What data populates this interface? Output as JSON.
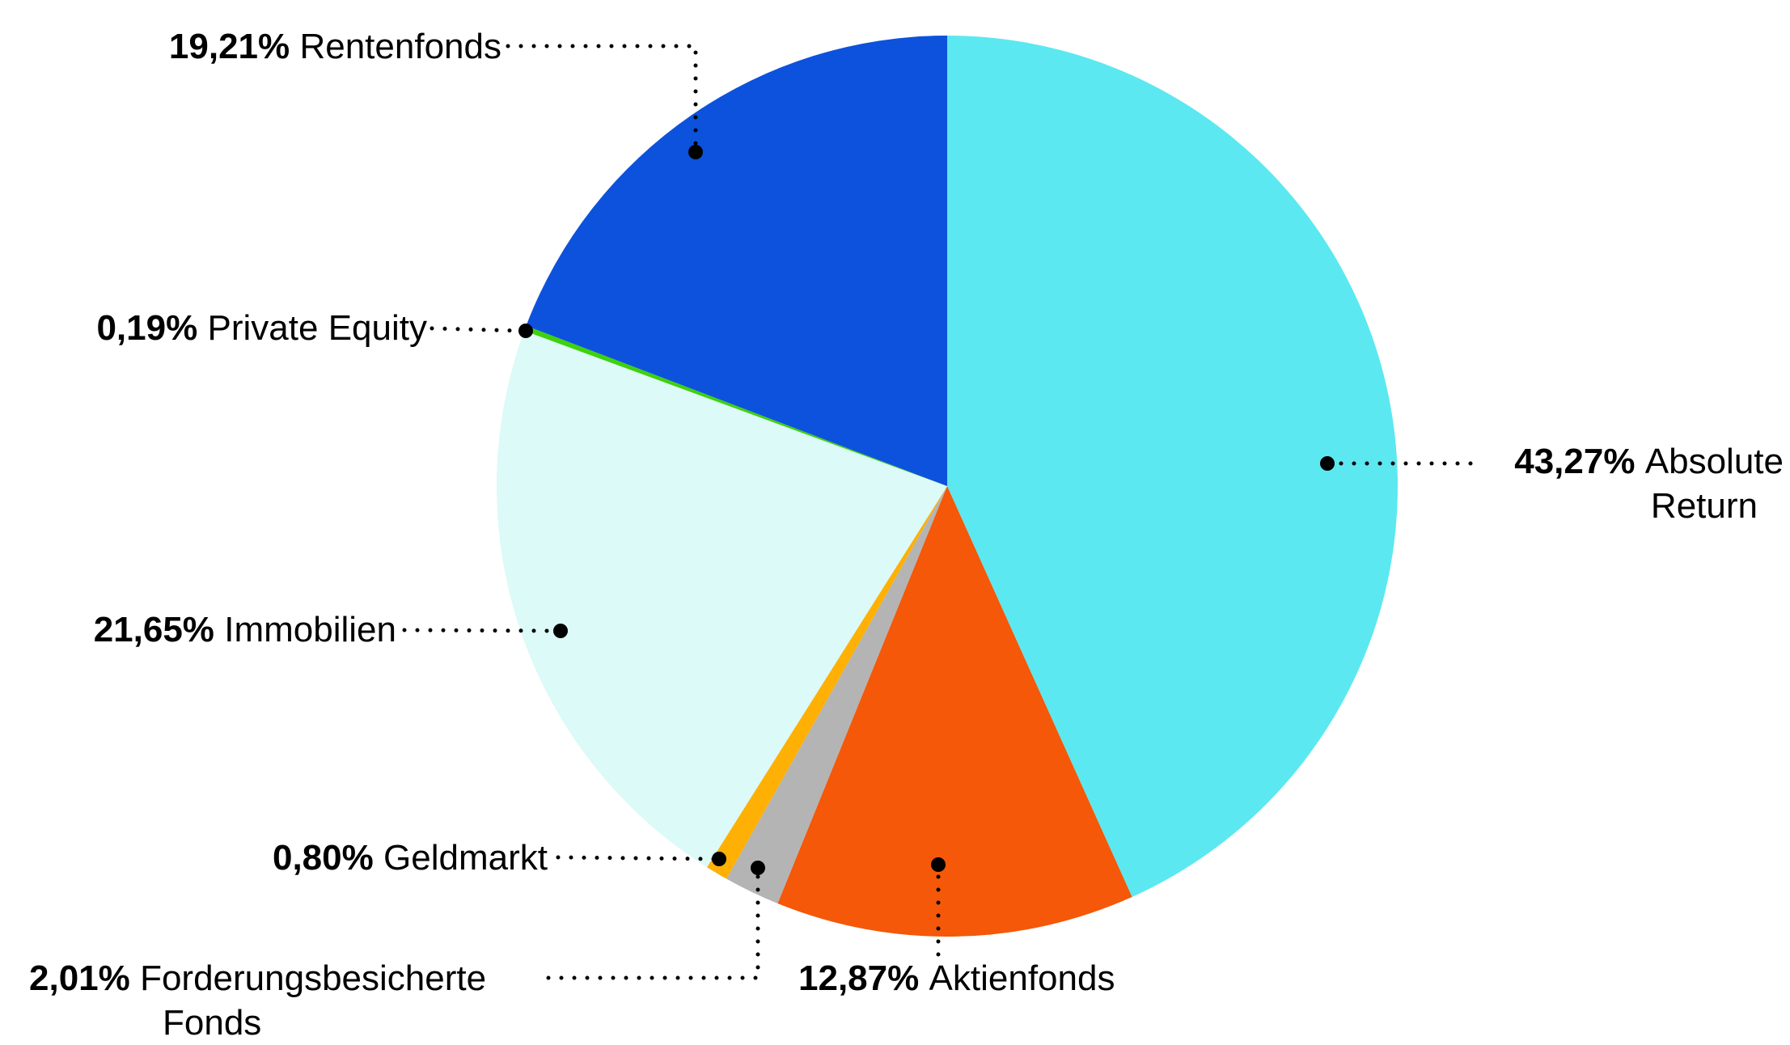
{
  "chart_data": {
    "type": "pie",
    "title": "",
    "direction": "clockwise",
    "start_angle_deg": 0,
    "legend_position": "callout-labels",
    "background_color": "#ffffff",
    "leader_line_color": "#000000",
    "label_text_color": "#000000",
    "segments": [
      {
        "label": "Absolute Return",
        "label_lines": [
          "Absolute",
          "Return"
        ],
        "pct_label": "43,27%",
        "value": 43.27,
        "color": "#5CE8F0"
      },
      {
        "label": "Aktienfonds",
        "pct_label": "12,87%",
        "value": 12.87,
        "color": "#F45808"
      },
      {
        "label": "Forderungsbesicherte Fonds",
        "label_lines": [
          "Forderungsbesicherte",
          "Fonds"
        ],
        "pct_label": "2,01%",
        "value": 2.01,
        "color": "#B4B4B4"
      },
      {
        "label": "Geldmarkt",
        "pct_label": "0,80%",
        "value": 0.8,
        "color": "#FFB005"
      },
      {
        "label": "Immobilien",
        "pct_label": "21,65%",
        "value": 21.65,
        "color": "#DCFAF7"
      },
      {
        "label": "Private Equity",
        "pct_label": "0,19%",
        "value": 0.19,
        "color": "#3ED20C"
      },
      {
        "label": "Rentenfonds",
        "pct_label": "19,21%",
        "value": 19.21,
        "color": "#0D52DC"
      }
    ]
  }
}
